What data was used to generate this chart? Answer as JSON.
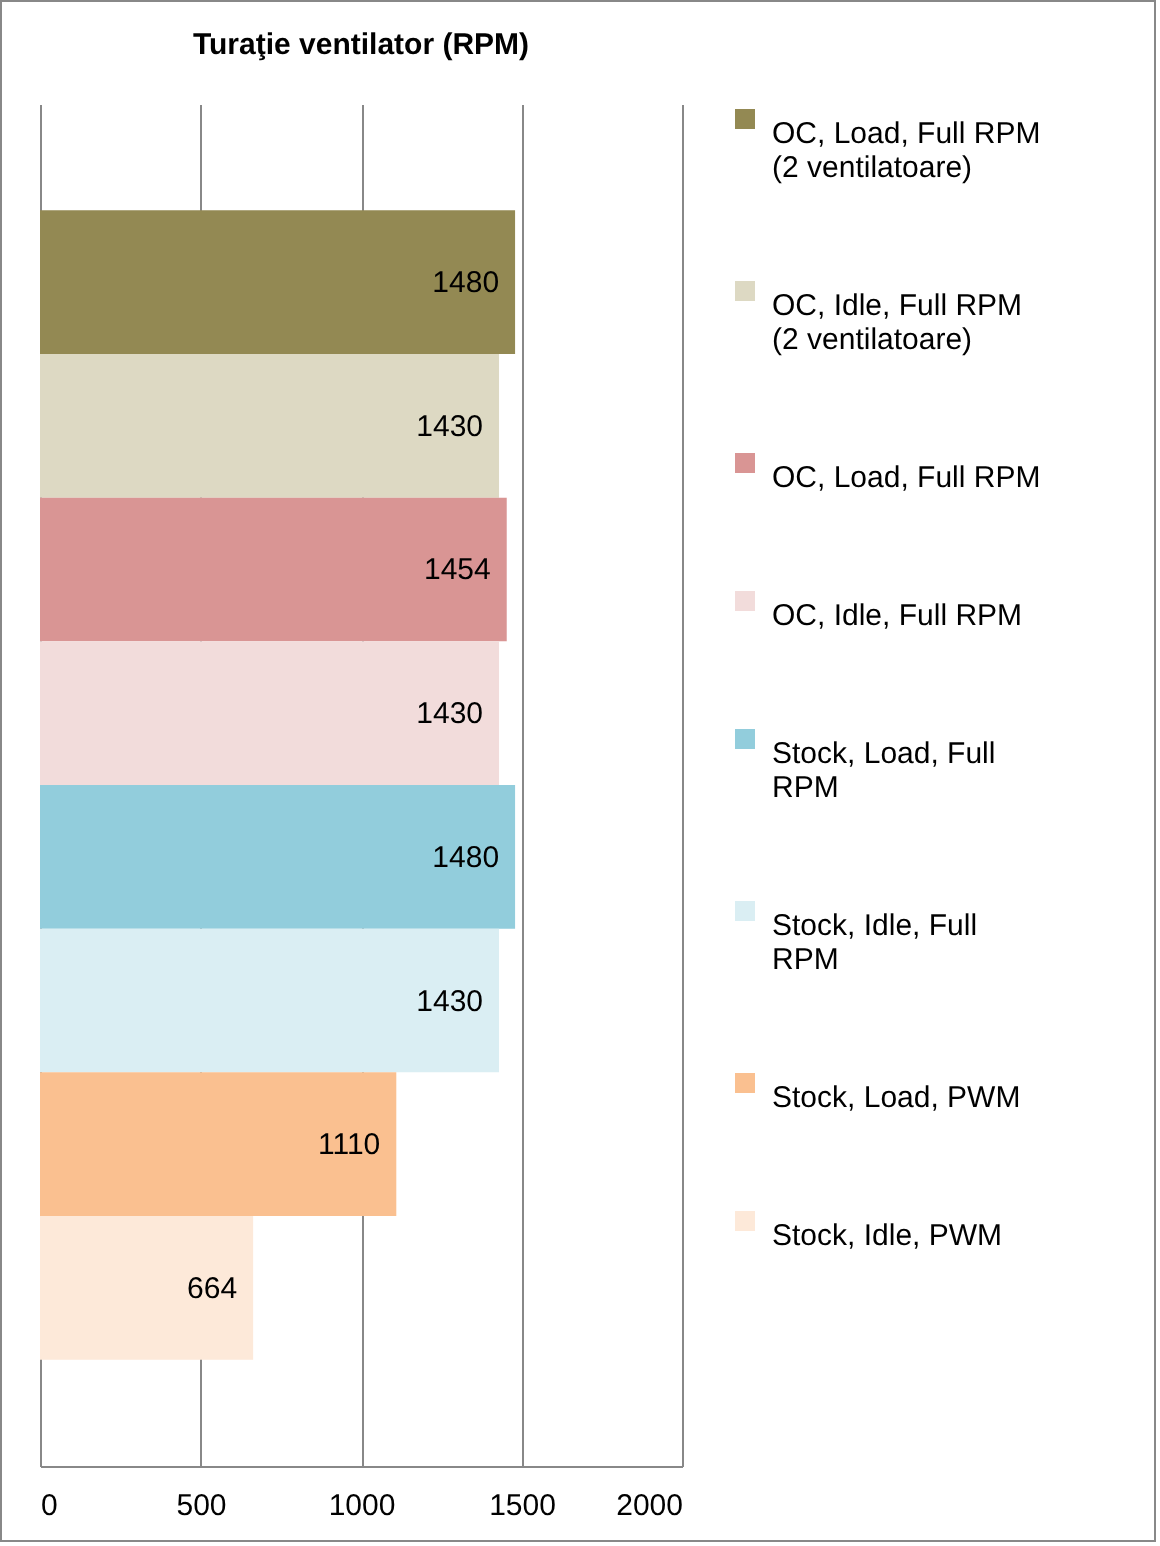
{
  "chart_data": {
    "type": "bar",
    "orientation": "horizontal",
    "stacked": true,
    "title": "Turaţie ventilator (RPM)",
    "categories": [
      null,
      null,
      null,
      null,
      null,
      null,
      null,
      null
    ],
    "series": [
      {
        "name": "OC, Load, Full RPM (2 ventilatoare)",
        "color": "#938953",
        "values": [
          1480,
          null,
          null,
          null,
          null,
          null,
          null,
          null
        ]
      },
      {
        "name": "OC, Idle, Full RPM (2 ventilatoare)",
        "color": "#ddd9c3",
        "values": [
          null,
          1430,
          null,
          null,
          null,
          null,
          null,
          null
        ]
      },
      {
        "name": "OC, Load, Full RPM",
        "color": "#d99594",
        "values": [
          null,
          null,
          1454,
          null,
          null,
          null,
          null,
          null
        ]
      },
      {
        "name": "OC, Idle, Full RPM",
        "color": "#f2dcdb",
        "values": [
          null,
          null,
          null,
          1430,
          null,
          null,
          null,
          null
        ]
      },
      {
        "name": "Stock, Load, Full RPM",
        "color": "#92cddc",
        "values": [
          null,
          null,
          null,
          null,
          1480,
          null,
          null,
          null
        ]
      },
      {
        "name": "Stock, Idle, Full RPM",
        "color": "#daeef3",
        "values": [
          null,
          null,
          null,
          null,
          null,
          1430,
          null,
          null
        ]
      },
      {
        "name": "Stock, Load, PWM",
        "color": "#fac090",
        "values": [
          null,
          null,
          null,
          null,
          null,
          null,
          1110,
          null
        ]
      },
      {
        "name": "Stock, Idle, PWM",
        "color": "#fde9d9",
        "values": [
          null,
          null,
          null,
          null,
          null,
          null,
          null,
          664
        ]
      }
    ],
    "xlim": [
      0,
      2000
    ],
    "xticks": [
      0,
      500,
      1000,
      1500,
      2000
    ],
    "grid": "x",
    "legend": "right",
    "data_labels": true
  }
}
